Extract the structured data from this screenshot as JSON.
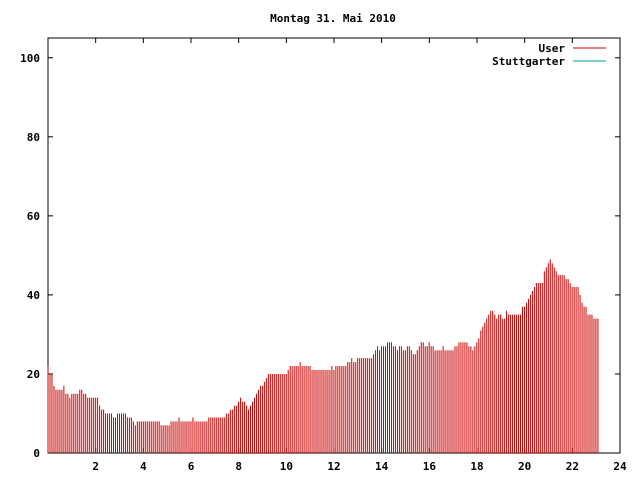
{
  "chart_data": {
    "type": "bar",
    "title": "Montag 31. Mai 2010",
    "xlabel": "",
    "ylabel": "",
    "xlim": [
      0,
      24
    ],
    "ylim": [
      0,
      105
    ],
    "x_ticks": [
      2,
      4,
      6,
      8,
      10,
      12,
      14,
      16,
      18,
      20,
      22,
      24
    ],
    "y_ticks": [
      0,
      20,
      40,
      60,
      80,
      100
    ],
    "legend_position": "top-right",
    "series": [
      {
        "name": "User",
        "color": "#cc0000",
        "x_start": 0,
        "x_step": 0.0833,
        "values": [
          22,
          20,
          20,
          17,
          16,
          16,
          16,
          16,
          17,
          15,
          15,
          14,
          15,
          15,
          15,
          15,
          16,
          16,
          15,
          15,
          14,
          14,
          14,
          14,
          14,
          14,
          12,
          11,
          11,
          10,
          10,
          10,
          10,
          9,
          9,
          10,
          10,
          10,
          10,
          10,
          9,
          9,
          9,
          8,
          7,
          8,
          8,
          8,
          8,
          8,
          8,
          8,
          8,
          8,
          8,
          8,
          8,
          7,
          7,
          7,
          7,
          7,
          8,
          8,
          8,
          8,
          9,
          8,
          8,
          8,
          8,
          8,
          8,
          9,
          8,
          8,
          8,
          8,
          8,
          8,
          8,
          9,
          9,
          9,
          9,
          9,
          9,
          9,
          9,
          9,
          10,
          10,
          11,
          11,
          12,
          12,
          13,
          14,
          13,
          13,
          12,
          11,
          12,
          13,
          14,
          15,
          16,
          17,
          17,
          18,
          19,
          20,
          20,
          20,
          20,
          20,
          20,
          20,
          20,
          20,
          20,
          21,
          22,
          22,
          22,
          22,
          22,
          23,
          22,
          22,
          22,
          22,
          22,
          21,
          21,
          21,
          21,
          21,
          21,
          21,
          21,
          21,
          21,
          22,
          21,
          22,
          22,
          22,
          22,
          22,
          22,
          23,
          23,
          24,
          23,
          23,
          24,
          24,
          24,
          24,
          24,
          24,
          24,
          24,
          25,
          26,
          27,
          26,
          27,
          27,
          27,
          28,
          28,
          28,
          27,
          27,
          26,
          27,
          27,
          26,
          26,
          27,
          27,
          26,
          25,
          25,
          26,
          27,
          28,
          28,
          27,
          27,
          28,
          27,
          27,
          26,
          26,
          26,
          26,
          27,
          26,
          26,
          26,
          26,
          26,
          27,
          27,
          28,
          28,
          28,
          28,
          28,
          27,
          27,
          26,
          27,
          28,
          29,
          31,
          32,
          33,
          34,
          35,
          36,
          36,
          35,
          34,
          35,
          35,
          34,
          34,
          36,
          35,
          35,
          35,
          35,
          35,
          35,
          35,
          37,
          37,
          38,
          39,
          40,
          41,
          42,
          43,
          43,
          43,
          43,
          46,
          47,
          48,
          49,
          48,
          47,
          46,
          45,
          45,
          45,
          45,
          44,
          44,
          43,
          42,
          42,
          42,
          42,
          40,
          38,
          37,
          37,
          35,
          35,
          35,
          34,
          34,
          34
        ]
      },
      {
        "name": "Stuttgarter",
        "color": "#009999",
        "values": []
      }
    ]
  }
}
